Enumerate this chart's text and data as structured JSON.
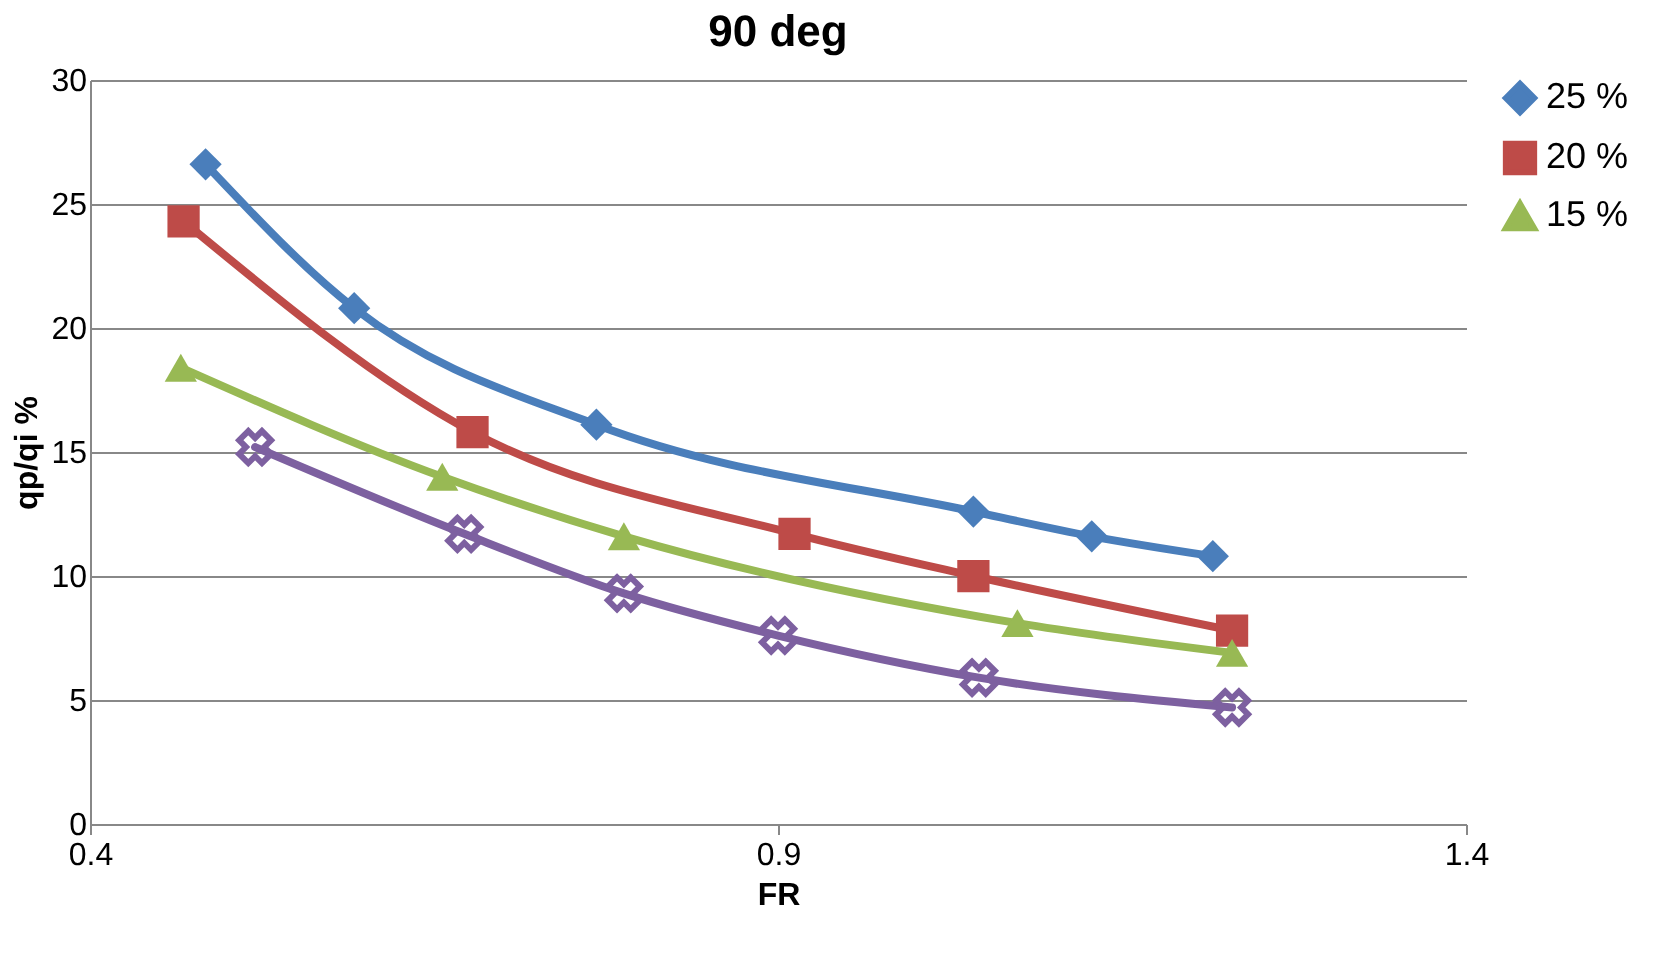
{
  "chart_data": {
    "type": "line",
    "title": "90 deg",
    "xlabel": "FR",
    "ylabel": "qp/qi %",
    "xlim": [
      0.4,
      1.4
    ],
    "xticks": [
      0.4,
      0.9,
      1.4
    ],
    "ylim": [
      0,
      30
    ],
    "yticks": [
      0,
      5,
      10,
      15,
      20,
      25,
      30
    ],
    "grid": "y",
    "legend": "right",
    "series": [
      {
        "name": "25 %",
        "color": "#4a7ebb",
        "marker": "diamond",
        "x": [
          0.484,
          0.592,
          0.768,
          1.042,
          1.128,
          1.216
        ],
        "values": [
          26.6,
          20.8,
          16.1,
          12.6,
          11.6,
          10.8
        ]
      },
      {
        "name": "20 %",
        "color": "#be4b48",
        "marker": "square",
        "x": [
          0.468,
          0.678,
          0.912,
          1.042,
          1.23
        ],
        "values": [
          24.3,
          15.8,
          11.7,
          10.0,
          7.8
        ]
      },
      {
        "name": "15 %",
        "color": "#98b954",
        "marker": "triangle",
        "x": [
          0.466,
          0.656,
          0.788,
          1.074,
          1.23
        ],
        "values": [
          18.4,
          14.0,
          11.6,
          8.1,
          6.9
        ]
      },
      {
        "color": "#7d60a0",
        "marker": "cross",
        "x": [
          0.52,
          0.672,
          0.788,
          0.9,
          1.046,
          1.23
        ],
        "values": [
          15.2,
          11.7,
          9.3,
          7.6,
          5.9,
          4.7
        ]
      }
    ]
  }
}
